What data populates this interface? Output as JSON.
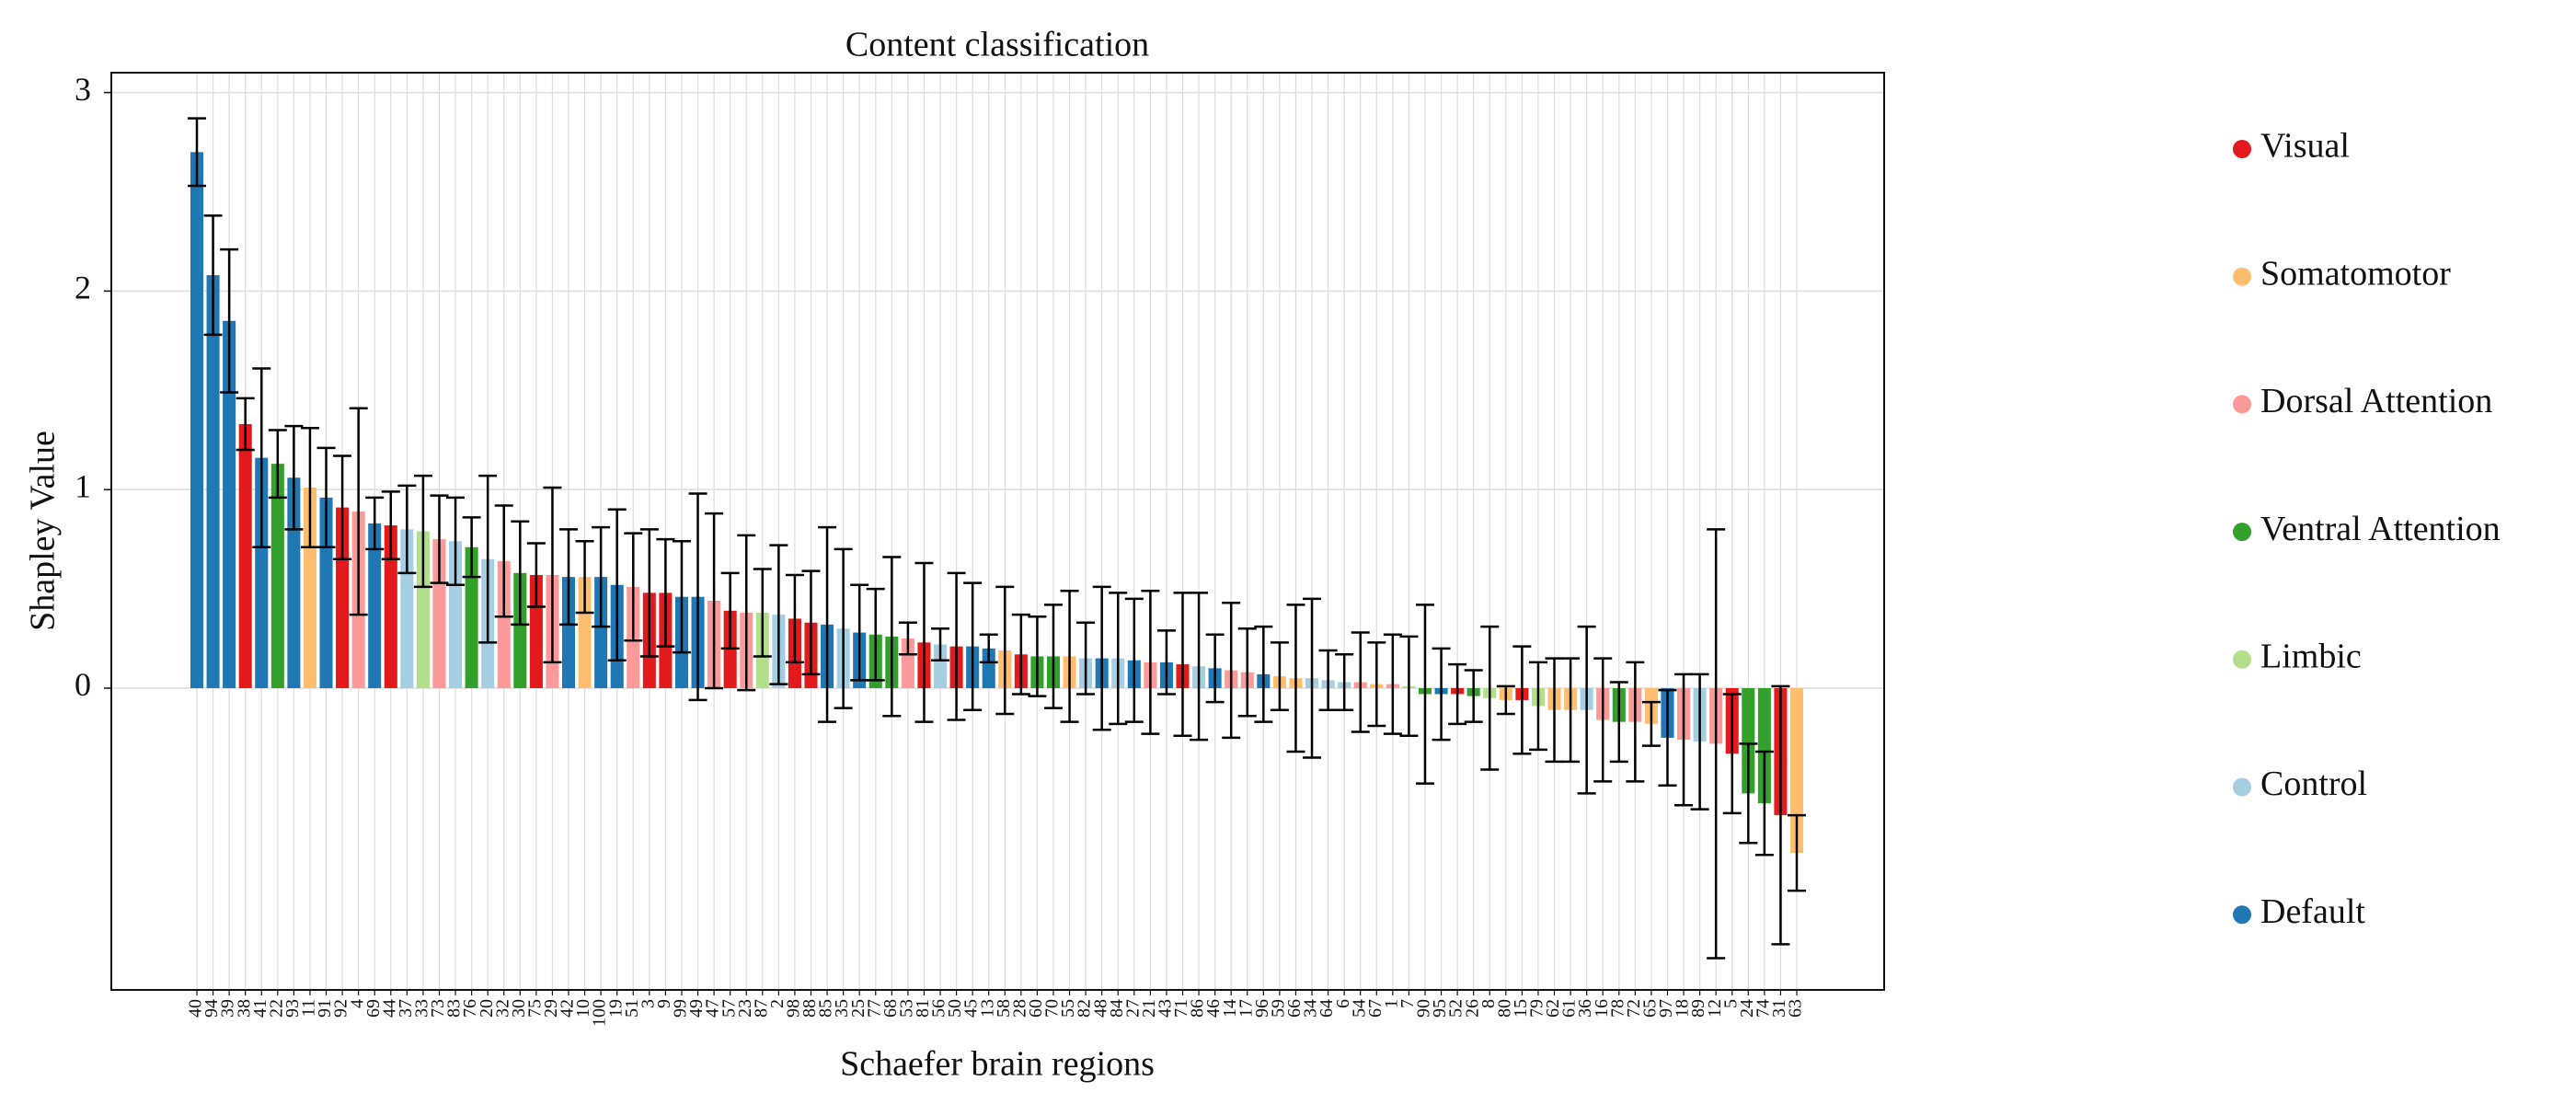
{
  "chart_data": {
    "type": "bar",
    "title": "Content classification",
    "xlabel": "Schaefer brain regions",
    "ylabel": "Shapley Value",
    "ylim": [
      -1.52,
      3.1
    ],
    "yticks": [
      0,
      1,
      2,
      3
    ],
    "grid": true,
    "legend_position": "right",
    "legend": [
      {
        "name": "Visual",
        "color": "#e31a1c"
      },
      {
        "name": "Somatomotor",
        "color": "#fdbf6f"
      },
      {
        "name": "Dorsal Attention",
        "color": "#fb9a99"
      },
      {
        "name": "Ventral Attention",
        "color": "#33a02c"
      },
      {
        "name": "Limbic",
        "color": "#b2df8a"
      },
      {
        "name": "Control",
        "color": "#a6cee3"
      },
      {
        "name": "Default",
        "color": "#1f78b4"
      }
    ],
    "categories": [
      "40",
      "94",
      "39",
      "38",
      "41",
      "22",
      "93",
      "11",
      "91",
      "92",
      "4",
      "69",
      "44",
      "37",
      "33",
      "73",
      "83",
      "76",
      "20",
      "32",
      "30",
      "75",
      "29",
      "42",
      "10",
      "100",
      "19",
      "51",
      "3",
      "9",
      "99",
      "49",
      "47",
      "57",
      "23",
      "87",
      "2",
      "98",
      "88",
      "85",
      "35",
      "25",
      "77",
      "68",
      "53",
      "81",
      "56",
      "50",
      "45",
      "13",
      "58",
      "28",
      "60",
      "70",
      "55",
      "82",
      "48",
      "84",
      "27",
      "21",
      "43",
      "71",
      "86",
      "46",
      "14",
      "17",
      "96",
      "59",
      "66",
      "34",
      "64",
      "6",
      "54",
      "67",
      "1",
      "7",
      "90",
      "95",
      "52",
      "26",
      "8",
      "80",
      "15",
      "79",
      "62",
      "61",
      "36",
      "16",
      "78",
      "72",
      "65",
      "97",
      "18",
      "89",
      "12",
      "5",
      "24",
      "74",
      "31",
      "63"
    ],
    "values": [
      2.7,
      2.08,
      1.85,
      1.33,
      1.16,
      1.13,
      1.06,
      1.01,
      0.96,
      0.91,
      0.89,
      0.83,
      0.82,
      0.8,
      0.79,
      0.75,
      0.74,
      0.71,
      0.65,
      0.64,
      0.58,
      0.57,
      0.57,
      0.56,
      0.56,
      0.56,
      0.52,
      0.51,
      0.48,
      0.48,
      0.46,
      0.46,
      0.44,
      0.39,
      0.38,
      0.38,
      0.37,
      0.35,
      0.33,
      0.32,
      0.3,
      0.28,
      0.27,
      0.26,
      0.25,
      0.23,
      0.22,
      0.21,
      0.21,
      0.2,
      0.19,
      0.17,
      0.16,
      0.16,
      0.16,
      0.15,
      0.15,
      0.15,
      0.14,
      0.13,
      0.13,
      0.12,
      0.11,
      0.1,
      0.09,
      0.08,
      0.07,
      0.06,
      0.05,
      0.05,
      0.04,
      0.03,
      0.03,
      0.02,
      0.02,
      0.01,
      -0.03,
      -0.03,
      -0.03,
      -0.04,
      -0.05,
      -0.06,
      -0.06,
      -0.09,
      -0.11,
      -0.11,
      -0.11,
      -0.16,
      -0.17,
      -0.17,
      -0.18,
      -0.25,
      -0.26,
      -0.27,
      -0.28,
      -0.33,
      -0.53,
      -0.58,
      -0.64,
      -0.83
    ],
    "errors": [
      0.17,
      0.3,
      0.36,
      0.13,
      0.45,
      0.17,
      0.26,
      0.3,
      0.25,
      0.26,
      0.52,
      0.13,
      0.17,
      0.22,
      0.28,
      0.22,
      0.22,
      0.15,
      0.42,
      0.28,
      0.26,
      0.16,
      0.44,
      0.24,
      0.18,
      0.25,
      0.38,
      0.27,
      0.32,
      0.27,
      0.28,
      0.52,
      0.44,
      0.19,
      0.39,
      0.22,
      0.35,
      0.22,
      0.26,
      0.49,
      0.4,
      0.24,
      0.23,
      0.4,
      0.08,
      0.4,
      0.08,
      0.37,
      0.32,
      0.07,
      0.32,
      0.2,
      0.2,
      0.26,
      0.33,
      0.18,
      0.36,
      0.33,
      0.31,
      0.36,
      0.16,
      0.36,
      0.37,
      0.17,
      0.34,
      0.22,
      0.24,
      0.17,
      0.37,
      0.4,
      0.15,
      0.14,
      0.25,
      0.21,
      0.25,
      0.25,
      0.45,
      0.23,
      0.15,
      0.13,
      0.36,
      0.07,
      0.27,
      0.22,
      0.26,
      0.26,
      0.42,
      0.31,
      0.2,
      0.3,
      0.11,
      0.24,
      0.33,
      0.34,
      1.08,
      0.3,
      0.25,
      0.26,
      0.65,
      0.19
    ],
    "colors": [
      "#1f78b4",
      "#1f78b4",
      "#1f78b4",
      "#e31a1c",
      "#1f78b4",
      "#33a02c",
      "#1f78b4",
      "#fdbf6f",
      "#1f78b4",
      "#e31a1c",
      "#fb9a99",
      "#1f78b4",
      "#e31a1c",
      "#a6cee3",
      "#b2df8a",
      "#fb9a99",
      "#a6cee3",
      "#33a02c",
      "#a6cee3",
      "#fb9a99",
      "#33a02c",
      "#e31a1c",
      "#fb9a99",
      "#1f78b4",
      "#fdbf6f",
      "#1f78b4",
      "#1f78b4",
      "#fb9a99",
      "#e31a1c",
      "#e31a1c",
      "#1f78b4",
      "#1f78b4",
      "#fb9a99",
      "#e31a1c",
      "#fb9a99",
      "#b2df8a",
      "#a6cee3",
      "#e31a1c",
      "#e31a1c",
      "#1f78b4",
      "#a6cee3",
      "#1f78b4",
      "#33a02c",
      "#33a02c",
      "#fb9a99",
      "#e31a1c",
      "#a6cee3",
      "#e31a1c",
      "#1f78b4",
      "#1f78b4",
      "#fdbf6f",
      "#e31a1c",
      "#33a02c",
      "#33a02c",
      "#fdbf6f",
      "#a6cee3",
      "#1f78b4",
      "#a6cee3",
      "#1f78b4",
      "#fb9a99",
      "#1f78b4",
      "#e31a1c",
      "#a6cee3",
      "#1f78b4",
      "#fb9a99",
      "#fb9a99",
      "#1f78b4",
      "#fdbf6f",
      "#fdbf6f",
      "#a6cee3",
      "#a6cee3",
      "#a6cee3",
      "#fb9a99",
      "#fdbf6f",
      "#fb9a99",
      "#b2df8a",
      "#33a02c",
      "#1f78b4",
      "#e31a1c",
      "#33a02c",
      "#b2df8a",
      "#fdbf6f",
      "#e31a1c",
      "#b2df8a",
      "#fdbf6f",
      "#fdbf6f",
      "#a6cee3",
      "#fb9a99",
      "#33a02c",
      "#fb9a99",
      "#fdbf6f",
      "#1f78b4",
      "#fb9a99",
      "#a6cee3",
      "#fb9a99",
      "#e31a1c",
      "#33a02c",
      "#33a02c",
      "#e31a1c",
      "#fdbf6f"
    ]
  }
}
